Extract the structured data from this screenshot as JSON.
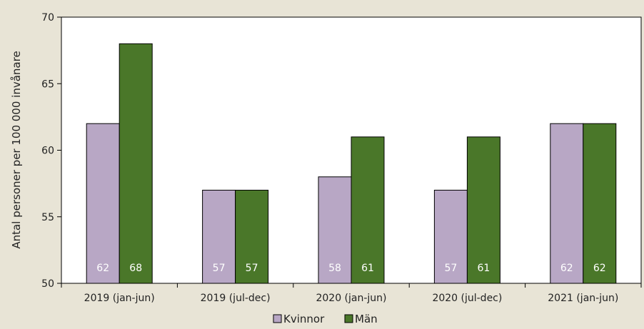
{
  "chart_data": {
    "type": "bar",
    "title": "",
    "xlabel": "",
    "ylabel": "Antal personer per 100 000 invånare",
    "ylim": [
      50,
      70
    ],
    "yticks": [
      50,
      55,
      60,
      65,
      70
    ],
    "grid": false,
    "legend_position": "bottom-center",
    "categories": [
      "2019 (jan-jun)",
      "2019 (jul-dec)",
      "2020 (jan-jun)",
      "2020 (jul-dec)",
      "2021 (jan-jun)"
    ],
    "series": [
      {
        "name": "Kvinnor",
        "color": "#b8a7c5",
        "values": [
          62,
          57,
          58,
          57,
          62
        ]
      },
      {
        "name": "Män",
        "color": "#4a7729",
        "values": [
          68,
          57,
          61,
          61,
          62
        ]
      }
    ]
  }
}
